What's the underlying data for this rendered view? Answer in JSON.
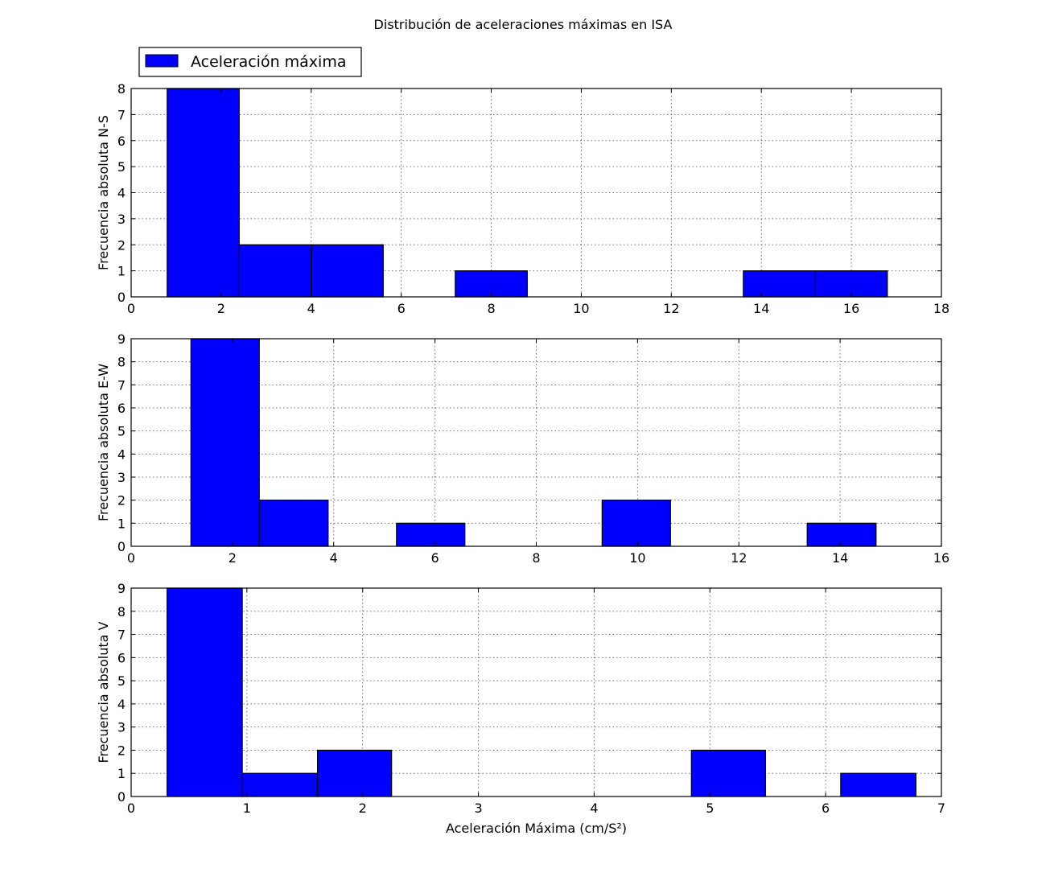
{
  "figure": {
    "title": "Distribución de aceleraciones máximas en ISA",
    "legend": {
      "label": "Aceleración máxima",
      "placement": "top-left, above plots"
    },
    "bar_color": "#0000ff",
    "edge_color": "#000000"
  },
  "chart_data": [
    {
      "type": "bar",
      "title": "",
      "xlabel": "",
      "ylabel": "Frecuencia absoluta N-S",
      "xlim": [
        0,
        18
      ],
      "ylim": [
        0,
        8
      ],
      "xticks": [
        0,
        2,
        4,
        6,
        8,
        10,
        12,
        14,
        16,
        18
      ],
      "yticks": [
        0,
        1,
        2,
        3,
        4,
        5,
        6,
        7,
        8
      ],
      "grid": true,
      "bins": [
        {
          "x0": 0.8,
          "x1": 2.4,
          "count": 8
        },
        {
          "x0": 2.4,
          "x1": 4.0,
          "count": 2
        },
        {
          "x0": 4.0,
          "x1": 5.6,
          "count": 2
        },
        {
          "x0": 5.6,
          "x1": 7.2,
          "count": 0
        },
        {
          "x0": 7.2,
          "x1": 8.8,
          "count": 1
        },
        {
          "x0": 8.8,
          "x1": 10.4,
          "count": 0
        },
        {
          "x0": 10.4,
          "x1": 12.0,
          "count": 0
        },
        {
          "x0": 12.0,
          "x1": 13.6,
          "count": 0
        },
        {
          "x0": 13.6,
          "x1": 15.2,
          "count": 1
        },
        {
          "x0": 15.2,
          "x1": 16.8,
          "count": 1
        }
      ]
    },
    {
      "type": "bar",
      "title": "",
      "xlabel": "",
      "ylabel": "Frecuencia absoluta E-W",
      "xlim": [
        0,
        16
      ],
      "ylim": [
        0,
        9
      ],
      "xticks": [
        0,
        2,
        4,
        6,
        8,
        10,
        12,
        14,
        16
      ],
      "yticks": [
        0,
        1,
        2,
        3,
        4,
        5,
        6,
        7,
        8,
        9
      ],
      "grid": true,
      "bins": [
        {
          "x0": 1.18,
          "x1": 2.53,
          "count": 9
        },
        {
          "x0": 2.53,
          "x1": 3.89,
          "count": 2
        },
        {
          "x0": 3.89,
          "x1": 5.24,
          "count": 0
        },
        {
          "x0": 5.24,
          "x1": 6.59,
          "count": 1
        },
        {
          "x0": 6.59,
          "x1": 7.94,
          "count": 0
        },
        {
          "x0": 7.94,
          "x1": 9.3,
          "count": 0
        },
        {
          "x0": 9.3,
          "x1": 10.65,
          "count": 2
        },
        {
          "x0": 10.65,
          "x1": 12.0,
          "count": 0
        },
        {
          "x0": 12.0,
          "x1": 13.35,
          "count": 0
        },
        {
          "x0": 13.35,
          "x1": 14.71,
          "count": 1
        }
      ]
    },
    {
      "type": "bar",
      "title": "",
      "xlabel": "Aceleración Máxima (cm/S²)",
      "ylabel": "Frecuencia absoluta V",
      "xlim": [
        0,
        7
      ],
      "ylim": [
        0,
        9
      ],
      "xticks": [
        0,
        1,
        2,
        3,
        4,
        5,
        6,
        7
      ],
      "yticks": [
        0,
        1,
        2,
        3,
        4,
        5,
        6,
        7,
        8,
        9
      ],
      "grid": true,
      "bins": [
        {
          "x0": 0.31,
          "x1": 0.96,
          "count": 9
        },
        {
          "x0": 0.96,
          "x1": 1.61,
          "count": 1
        },
        {
          "x0": 1.61,
          "x1": 2.25,
          "count": 2
        },
        {
          "x0": 2.25,
          "x1": 2.9,
          "count": 0
        },
        {
          "x0": 2.9,
          "x1": 3.55,
          "count": 0
        },
        {
          "x0": 3.55,
          "x1": 4.19,
          "count": 0
        },
        {
          "x0": 4.19,
          "x1": 4.84,
          "count": 0
        },
        {
          "x0": 4.84,
          "x1": 5.48,
          "count": 2
        },
        {
          "x0": 5.48,
          "x1": 6.13,
          "count": 0
        },
        {
          "x0": 6.13,
          "x1": 6.78,
          "count": 1
        }
      ]
    }
  ]
}
